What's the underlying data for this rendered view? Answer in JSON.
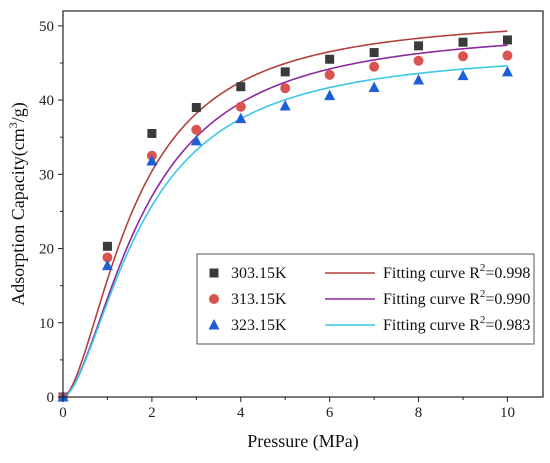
{
  "chart_data": {
    "type": "scatter",
    "title": "",
    "xlabel": "Pressure (MPa)",
    "ylabel_main": "Adsorption Capacity(cm",
    "ylabel_sup": "3",
    "ylabel_tail": "/g)",
    "xlim": [
      0,
      10.8
    ],
    "ylim": [
      0,
      52
    ],
    "xticks": [
      0,
      2,
      4,
      6,
      8,
      10
    ],
    "yticks": [
      0,
      10,
      20,
      30,
      40,
      50
    ],
    "grid": false,
    "legend_position": "bottom-right",
    "series": [
      {
        "name": "303.15K",
        "marker": "square",
        "marker_color": "#3a3a3a",
        "x": [
          0,
          1,
          2,
          3,
          4,
          5,
          6,
          7,
          8,
          9,
          10
        ],
        "y": [
          0,
          20.3,
          35.5,
          39.0,
          41.8,
          43.8,
          45.5,
          46.4,
          47.3,
          47.8,
          48.1
        ],
        "fit_label": "Fitting curve R",
        "fit_sup": "2",
        "fit_r2": "=0.998",
        "fit_color": "#b0413e",
        "fit_qmax": 51.5,
        "fit_b": 0.62,
        "fit_n": 1.7
      },
      {
        "name": "313.15K",
        "marker": "circle",
        "marker_color": "#d9534f",
        "x": [
          0,
          1,
          2,
          3,
          4,
          5,
          6,
          7,
          8,
          9,
          10
        ],
        "y": [
          0,
          18.8,
          32.5,
          36.0,
          39.1,
          41.6,
          43.4,
          44.5,
          45.3,
          45.9,
          46.0
        ],
        "fit_label": "Fitting curve R",
        "fit_sup": "2",
        "fit_r2": "=0.990",
        "fit_color": "#8a2a9e",
        "fit_qmax": 50.0,
        "fit_b": 0.55,
        "fit_n": 1.7
      },
      {
        "name": "323.15K",
        "marker": "triangle",
        "marker_color": "#1f5fd6",
        "x": [
          0,
          1,
          2,
          3,
          4,
          5,
          6,
          7,
          8,
          9,
          10
        ],
        "y": [
          0,
          17.7,
          31.8,
          34.5,
          37.5,
          39.2,
          40.6,
          41.7,
          42.7,
          43.3,
          43.8
        ],
        "fit_label": "Fitting curve R",
        "fit_sup": "2",
        "fit_r2": "=0.983",
        "fit_color": "#3cc7e8",
        "fit_qmax": 47.0,
        "fit_b": 0.56,
        "fit_n": 1.7
      }
    ]
  }
}
